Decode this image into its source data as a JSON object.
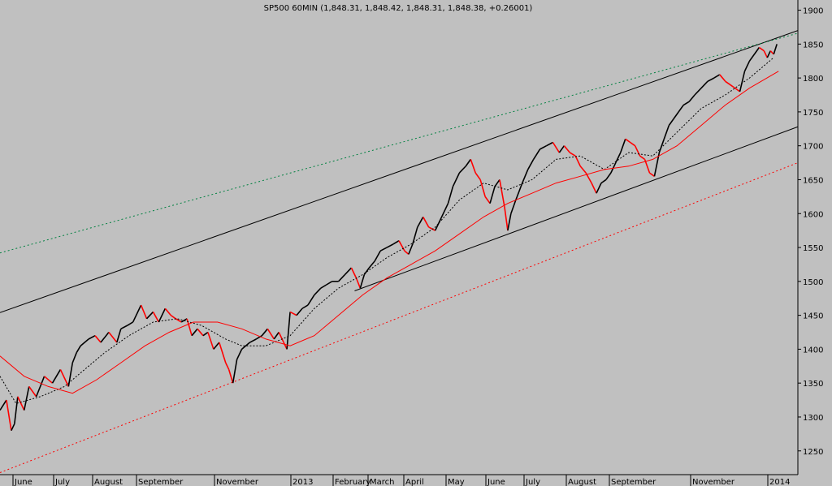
{
  "chart_data": {
    "type": "line",
    "title": "SP500 60MIN (1,848.31, 1,848.42, 1,848.31, 1,848.38, +0.26001)",
    "xlabel": "",
    "ylabel": "",
    "ylim": [
      1215,
      1915
    ],
    "y_ticks": [
      1250,
      1300,
      1350,
      1400,
      1450,
      1500,
      1550,
      1600,
      1650,
      1700,
      1750,
      1800,
      1850,
      1900
    ],
    "x_ticks": [
      "June",
      "July",
      "August",
      "September",
      "November",
      "2013",
      "February",
      "March",
      "April",
      "May",
      "June",
      "July",
      "August",
      "September",
      "November",
      "2014"
    ],
    "grid": false,
    "colors": {
      "background": "#c0c0c0",
      "price": "#000000",
      "price_down": "#ff0000",
      "ma_fast": "#000000",
      "ma_slow": "#ff0000",
      "channel": "#000000",
      "channel_lower_dotted": "#ff0000",
      "upper_dotted": "#008040"
    },
    "series": [
      {
        "key": "price",
        "x": [
          0,
          8,
          14,
          18,
          22,
          30,
          36,
          45,
          55,
          65,
          75,
          85,
          90,
          95,
          100,
          110,
          118,
          125,
          135,
          145,
          150,
          158,
          165,
          175,
          182,
          190,
          197,
          205,
          212,
          218,
          225,
          232,
          238,
          245,
          252,
          258,
          265,
          272,
          280,
          284,
          289,
          294,
          300,
          310,
          318,
          325,
          332,
          340,
          346,
          352,
          356,
          360,
          368,
          375,
          382,
          390,
          398,
          405,
          412,
          420,
          428,
          436,
          442,
          447,
          452,
          458,
          465,
          472,
          480,
          488,
          495,
          502,
          507,
          512,
          518,
          525,
          532,
          540,
          548,
          556,
          562,
          570,
          578,
          584,
          590,
          596,
          602,
          608,
          614,
          620,
          626,
          630,
          634,
          640,
          648,
          655,
          662,
          670,
          678,
          686,
          694,
          700,
          707,
          714,
          720,
          727,
          734,
          740,
          746,
          752,
          758,
          764,
          770,
          776,
          782,
          788,
          794,
          800,
          806,
          812,
          818,
          824,
          830,
          836,
          842,
          848,
          855,
          862,
          870,
          878,
          886,
          893,
          900,
          906,
          912,
          918,
          924,
          930,
          936,
          942,
          948,
          952,
          956,
          960,
          964
        ],
        "values": [
          1310,
          1325,
          1280,
          1290,
          1330,
          1310,
          1345,
          1330,
          1360,
          1350,
          1370,
          1345,
          1380,
          1395,
          1405,
          1415,
          1420,
          1410,
          1425,
          1410,
          1430,
          1435,
          1440,
          1465,
          1445,
          1455,
          1440,
          1460,
          1450,
          1445,
          1440,
          1445,
          1420,
          1430,
          1420,
          1425,
          1400,
          1410,
          1380,
          1370,
          1350,
          1385,
          1400,
          1410,
          1415,
          1420,
          1430,
          1415,
          1425,
          1410,
          1400,
          1455,
          1450,
          1460,
          1465,
          1480,
          1490,
          1495,
          1500,
          1500,
          1510,
          1520,
          1505,
          1490,
          1510,
          1520,
          1530,
          1545,
          1550,
          1555,
          1560,
          1545,
          1540,
          1555,
          1580,
          1595,
          1580,
          1575,
          1595,
          1615,
          1640,
          1660,
          1670,
          1680,
          1660,
          1650,
          1625,
          1615,
          1640,
          1650,
          1610,
          1575,
          1600,
          1620,
          1645,
          1665,
          1680,
          1695,
          1700,
          1705,
          1690,
          1700,
          1690,
          1685,
          1670,
          1660,
          1645,
          1630,
          1645,
          1650,
          1660,
          1675,
          1690,
          1710,
          1705,
          1700,
          1685,
          1680,
          1660,
          1655,
          1690,
          1710,
          1730,
          1740,
          1750,
          1760,
          1765,
          1775,
          1785,
          1795,
          1800,
          1805,
          1795,
          1790,
          1785,
          1780,
          1810,
          1825,
          1835,
          1845,
          1840,
          1830,
          1840,
          1835,
          1850
        ]
      },
      {
        "key": "ma_fast",
        "x": [
          0,
          20,
          50,
          80,
          100,
          130,
          160,
          190,
          220,
          250,
          280,
          300,
          330,
          360,
          390,
          420,
          450,
          480,
          510,
          540,
          570,
          600,
          630,
          660,
          690,
          720,
          750,
          780,
          810,
          840,
          870,
          900,
          930,
          960
        ],
        "values": [
          1360,
          1320,
          1330,
          1345,
          1365,
          1395,
          1420,
          1440,
          1445,
          1435,
          1415,
          1405,
          1405,
          1420,
          1460,
          1490,
          1510,
          1535,
          1555,
          1580,
          1620,
          1645,
          1635,
          1650,
          1680,
          1685,
          1665,
          1690,
          1685,
          1720,
          1755,
          1775,
          1800,
          1830
        ]
      },
      {
        "key": "ma_slow",
        "x": [
          0,
          30,
          60,
          90,
          120,
          150,
          180,
          210,
          240,
          270,
          300,
          330,
          360,
          390,
          420,
          450,
          480,
          510,
          540,
          570,
          600,
          630,
          660,
          690,
          720,
          750,
          780,
          810,
          840,
          870,
          900,
          930,
          966
        ],
        "values": [
          1390,
          1360,
          1345,
          1335,
          1355,
          1380,
          1405,
          1425,
          1440,
          1440,
          1430,
          1415,
          1405,
          1420,
          1450,
          1480,
          1505,
          1525,
          1545,
          1570,
          1595,
          1615,
          1630,
          1645,
          1655,
          1665,
          1670,
          1680,
          1700,
          1730,
          1760,
          1785,
          1810
        ]
      }
    ],
    "lines": [
      {
        "key": "channel_upper",
        "style": "solid",
        "x": [
          0,
          990
        ],
        "values": [
          1454,
          1870
        ]
      },
      {
        "key": "channel_lower",
        "style": "solid",
        "x": [
          440,
          990
        ],
        "values": [
          1486,
          1728
        ]
      },
      {
        "key": "lower_dotted",
        "style": "dashed",
        "x": [
          0,
          990
        ],
        "values": [
          1218,
          1675
        ]
      },
      {
        "key": "upper_dotted",
        "style": "dashed",
        "x": [
          0,
          990
        ],
        "values": [
          1542,
          1866
        ]
      }
    ]
  }
}
